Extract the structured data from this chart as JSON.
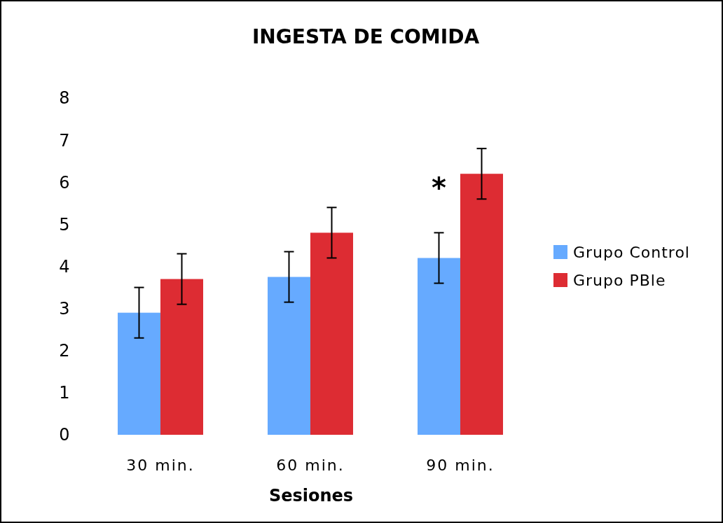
{
  "chart_data": {
    "type": "bar",
    "title": "INGESTA DE COMIDA",
    "xlabel": "Sesiones",
    "categories": [
      "30 min.",
      "60 min.",
      "90 min."
    ],
    "series": [
      {
        "name": "Grupo Control",
        "color": "#66aaff",
        "values": [
          2.9,
          3.75,
          4.2
        ],
        "errors": [
          0.6,
          0.6,
          0.6
        ]
      },
      {
        "name": "Grupo PBle",
        "color": "#dd2c33",
        "values": [
          3.7,
          4.8,
          6.2
        ],
        "errors": [
          0.6,
          0.6,
          0.6
        ]
      }
    ],
    "ylim": [
      0,
      8
    ],
    "yticks": [
      0,
      1,
      2,
      3,
      4,
      5,
      6,
      7,
      8
    ],
    "grid": false,
    "legend": "right",
    "annotations": [
      {
        "text": "*",
        "x": "90 min.",
        "y": 6.1
      }
    ]
  }
}
